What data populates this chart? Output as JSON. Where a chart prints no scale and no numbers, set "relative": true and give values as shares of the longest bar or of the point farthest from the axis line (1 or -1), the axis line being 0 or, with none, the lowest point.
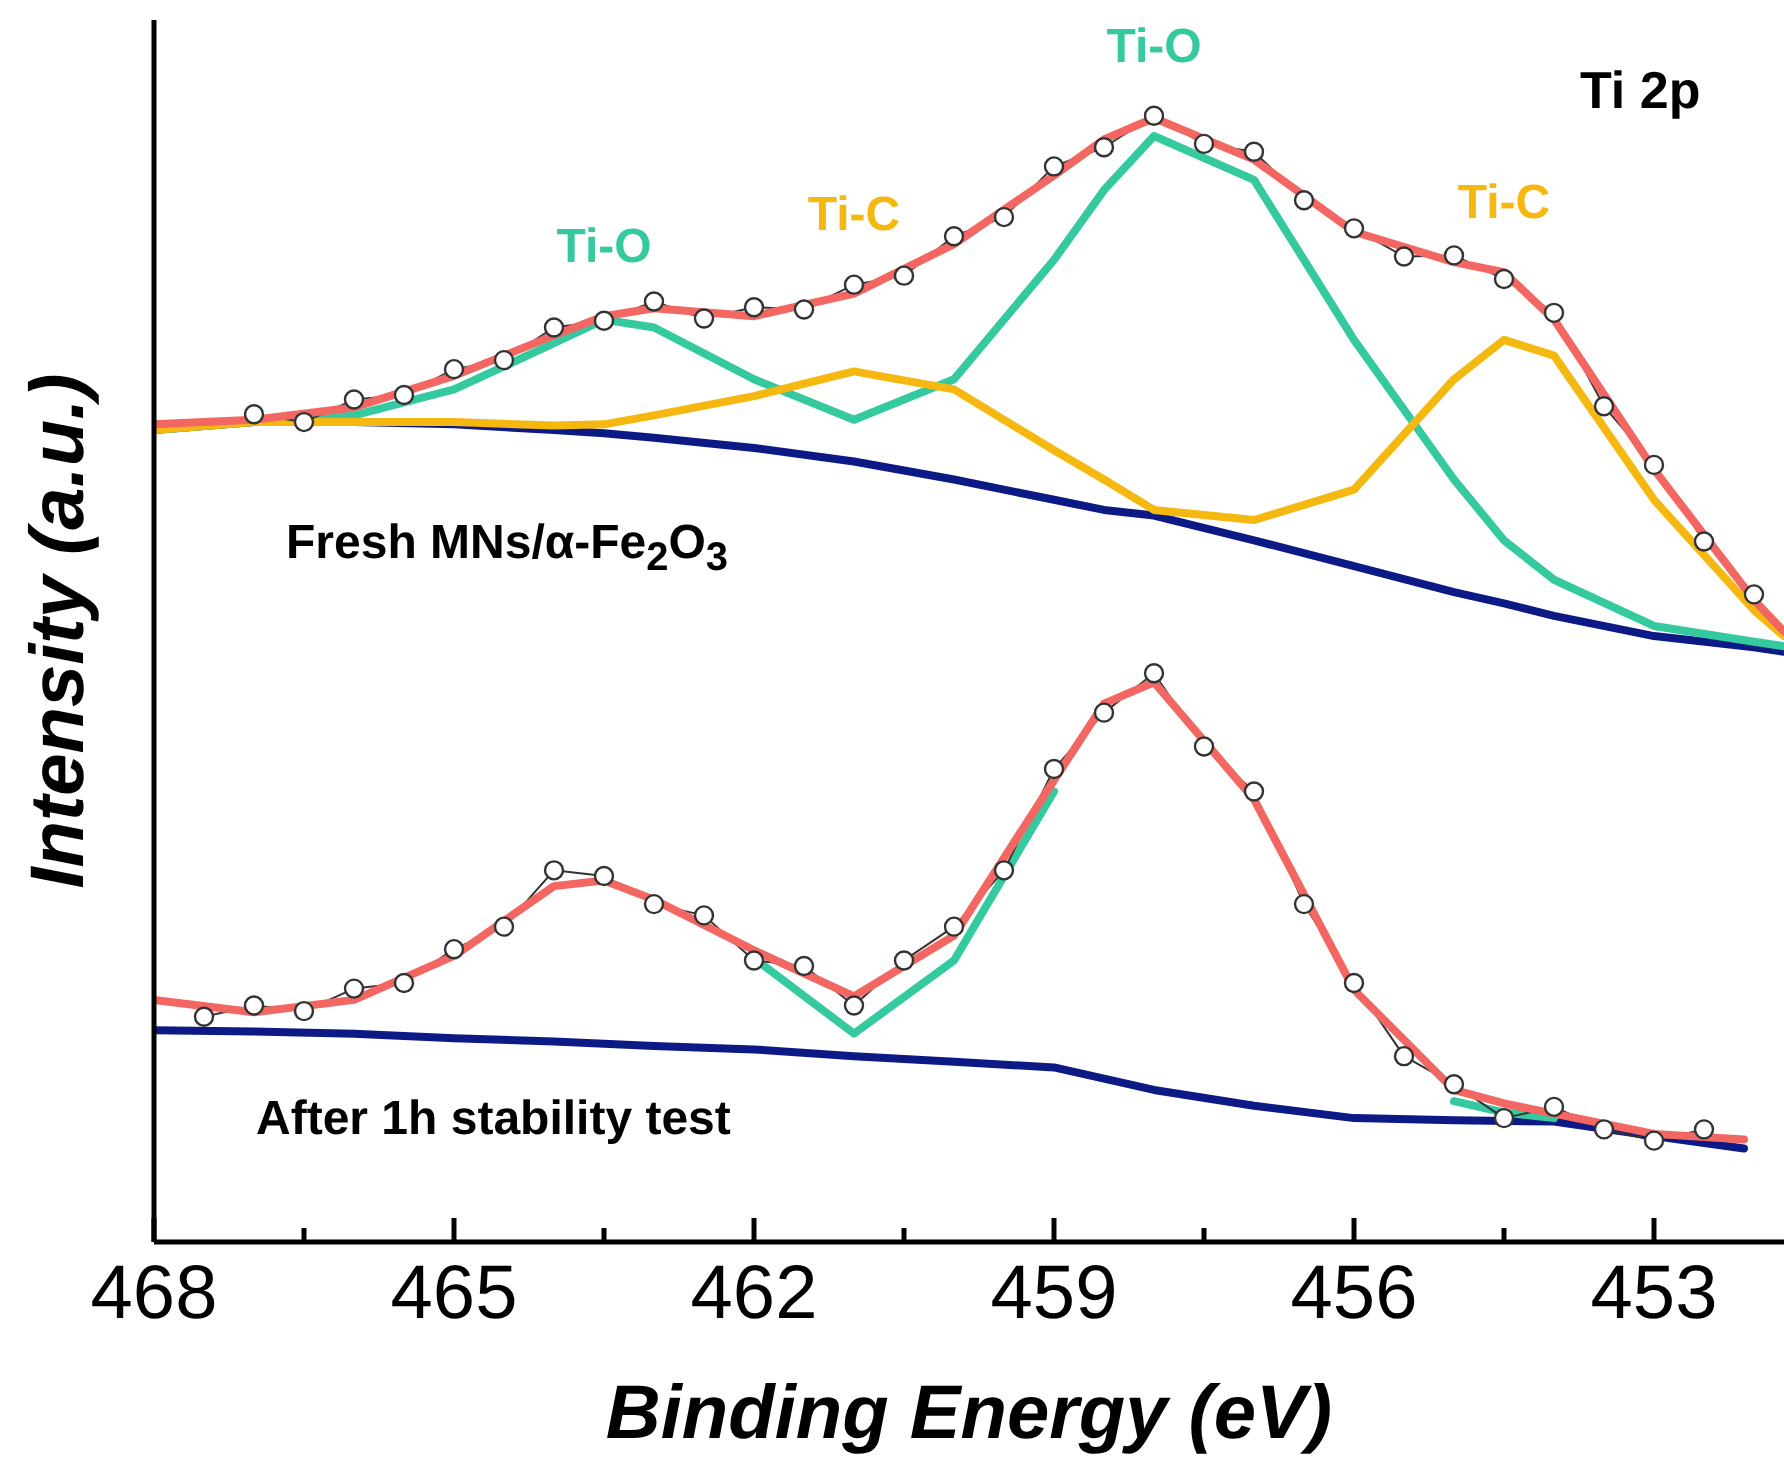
{
  "chart_data": {
    "type": "line",
    "relative": true,
    "marker": "none",
    "xlabel": "Binding Energy (eV)",
    "ylabel": "Intensity (a.u.)",
    "xlim": [
      468,
      451.7
    ],
    "xticks": [
      468,
      {
        "value": 466.5,
        "label": null
      },
      465,
      {
        "value": 463.5,
        "label": null
      },
      462,
      {
        "value": 460.5,
        "label": null
      },
      459,
      {
        "value": 457.5,
        "label": null
      },
      456,
      {
        "value": 454.5,
        "label": null
      },
      453
    ],
    "annotations": [
      "Ti 2p",
      "Fresh MNs/α-Fe$_{2}$O$_{3}$",
      "After 1h stability test",
      {
        "text": "Ti-O",
        "x": 463.5,
        "y": 0.819
      },
      {
        "text": "Ti-C",
        "x": 461,
        "y": 0.773
      },
      {
        "text": "Ti-O",
        "x": 458,
        "y": 0.982
      },
      {
        "text": "Ti-C",
        "x": 454.5,
        "y": 0.801
      }
    ],
    "series": [
      {
        "color": "#0d1a85",
        "x": [
          468,
          467,
          466,
          465,
          464,
          463.5,
          463,
          462,
          461,
          460,
          459,
          458.5,
          458,
          457,
          456,
          455,
          454.5,
          454,
          453,
          452,
          451.7
        ],
        "values": [
          0.721,
          0.728,
          0.728,
          0.726,
          0.721,
          0.718,
          0.714,
          0.705,
          0.693,
          0.677,
          0.659,
          0.65,
          0.645,
          0.623,
          0.6,
          0.577,
          0.567,
          0.556,
          0.538,
          0.528,
          0.524
        ]
      },
      {
        "color": "#35c9a0",
        "x": [
          468,
          467,
          466,
          465,
          464,
          463.5,
          463,
          462,
          461,
          460,
          459,
          458.5,
          458,
          457,
          456,
          455,
          454.5,
          454,
          453,
          452,
          451.7
        ],
        "values": [
          0.721,
          0.728,
          0.734,
          0.757,
          0.798,
          0.819,
          0.812,
          0.766,
          0.73,
          0.766,
          0.872,
          0.934,
          0.982,
          0.943,
          0.801,
          0.677,
          0.623,
          0.588,
          0.547,
          0.533,
          0.529
        ]
      },
      {
        "color": "#f5b810",
        "x": [
          468,
          467,
          466,
          465,
          464,
          463.5,
          463,
          462,
          461,
          460,
          459,
          458.5,
          458,
          457,
          456,
          455,
          454.5,
          454,
          453,
          452,
          451.7
        ],
        "values": [
          0.721,
          0.728,
          0.728,
          0.728,
          0.725,
          0.726,
          0.734,
          0.751,
          0.773,
          0.757,
          0.703,
          0.677,
          0.65,
          0.641,
          0.668,
          0.766,
          0.801,
          0.787,
          0.659,
          0.561,
          0.538
        ]
      },
      {
        "color": "#333333",
        "marker": "circle",
        "x": [
          467,
          466.5,
          466,
          465.5,
          465,
          464.5,
          464,
          463.5,
          463,
          462.5,
          462,
          461.5,
          461,
          460.5,
          460,
          459.5,
          459,
          458.5,
          458,
          457.5,
          457,
          456.5,
          456,
          455.5,
          455,
          454.5,
          454,
          453.5,
          453,
          452.5,
          452
        ],
        "values": [
          0.735,
          0.728,
          0.748,
          0.752,
          0.775,
          0.783,
          0.812,
          0.818,
          0.835,
          0.82,
          0.83,
          0.828,
          0.85,
          0.858,
          0.893,
          0.91,
          0.955,
          0.972,
          1.0,
          0.975,
          0.968,
          0.925,
          0.9,
          0.875,
          0.876,
          0.855,
          0.825,
          0.742,
          0.69,
          0.622,
          0.575
        ]
      },
      {
        "color": "#f26762",
        "x": [
          468,
          467,
          466,
          465,
          464,
          463.5,
          463,
          462,
          461,
          460,
          459,
          458.5,
          458,
          457,
          456,
          455,
          454.5,
          454,
          453,
          452,
          451.7
        ],
        "values": [
          0.726,
          0.73,
          0.741,
          0.769,
          0.805,
          0.822,
          0.829,
          0.822,
          0.842,
          0.886,
          0.947,
          0.979,
          0.998,
          0.961,
          0.897,
          0.87,
          0.861,
          0.819,
          0.686,
          0.57,
          0.542
        ]
      },
      {
        "color": "#0d1a85",
        "x": [
          468,
          467,
          466,
          465,
          464,
          463,
          462,
          461,
          460,
          459,
          458,
          457,
          456,
          455,
          454,
          453,
          452.1
        ],
        "values": [
          0.188,
          0.187,
          0.185,
          0.181,
          0.178,
          0.174,
          0.171,
          0.165,
          0.16,
          0.155,
          0.135,
          0.121,
          0.11,
          0.108,
          0.107,
          0.094,
          0.083
        ]
      },
      {
        "color": "#35c9a0",
        "x": [
          462,
          461,
          460,
          459
        ],
        "values": [
          0.252,
          0.185,
          0.25,
          0.4
        ]
      },
      {
        "color": "#35c9a0",
        "x": [
          455,
          454.5,
          454
        ],
        "values": [
          0.125,
          0.115,
          0.11
        ]
      },
      {
        "color": "#333333",
        "marker": "circle",
        "x": [
          467.5,
          467,
          466.5,
          466,
          465.5,
          465,
          464.5,
          464,
          463.5,
          463,
          462.5,
          462,
          461.5,
          461,
          460.5,
          460,
          459.5,
          459,
          458.5,
          458,
          457.5,
          457,
          456.5,
          456,
          455.5,
          455,
          454.5,
          454,
          453.5,
          453,
          452.5
        ],
        "values": [
          0.2,
          0.21,
          0.205,
          0.225,
          0.23,
          0.26,
          0.28,
          0.33,
          0.325,
          0.3,
          0.29,
          0.25,
          0.245,
          0.21,
          0.25,
          0.28,
          0.33,
          0.42,
          0.47,
          0.505,
          0.44,
          0.4,
          0.3,
          0.23,
          0.165,
          0.14,
          0.11,
          0.12,
          0.1,
          0.09,
          0.1
        ]
      },
      {
        "color": "#f26762",
        "x": [
          468,
          467,
          466,
          465,
          464,
          463.5,
          463,
          462,
          461,
          460,
          459,
          458.5,
          458,
          457,
          456,
          455,
          454.5,
          454,
          453,
          452.1
        ],
        "values": [
          0.215,
          0.204,
          0.215,
          0.254,
          0.316,
          0.321,
          0.304,
          0.259,
          0.218,
          0.272,
          0.41,
          0.478,
          0.497,
          0.393,
          0.224,
          0.135,
          0.123,
          0.114,
          0.096,
          0.091
        ]
      }
    ]
  }
}
